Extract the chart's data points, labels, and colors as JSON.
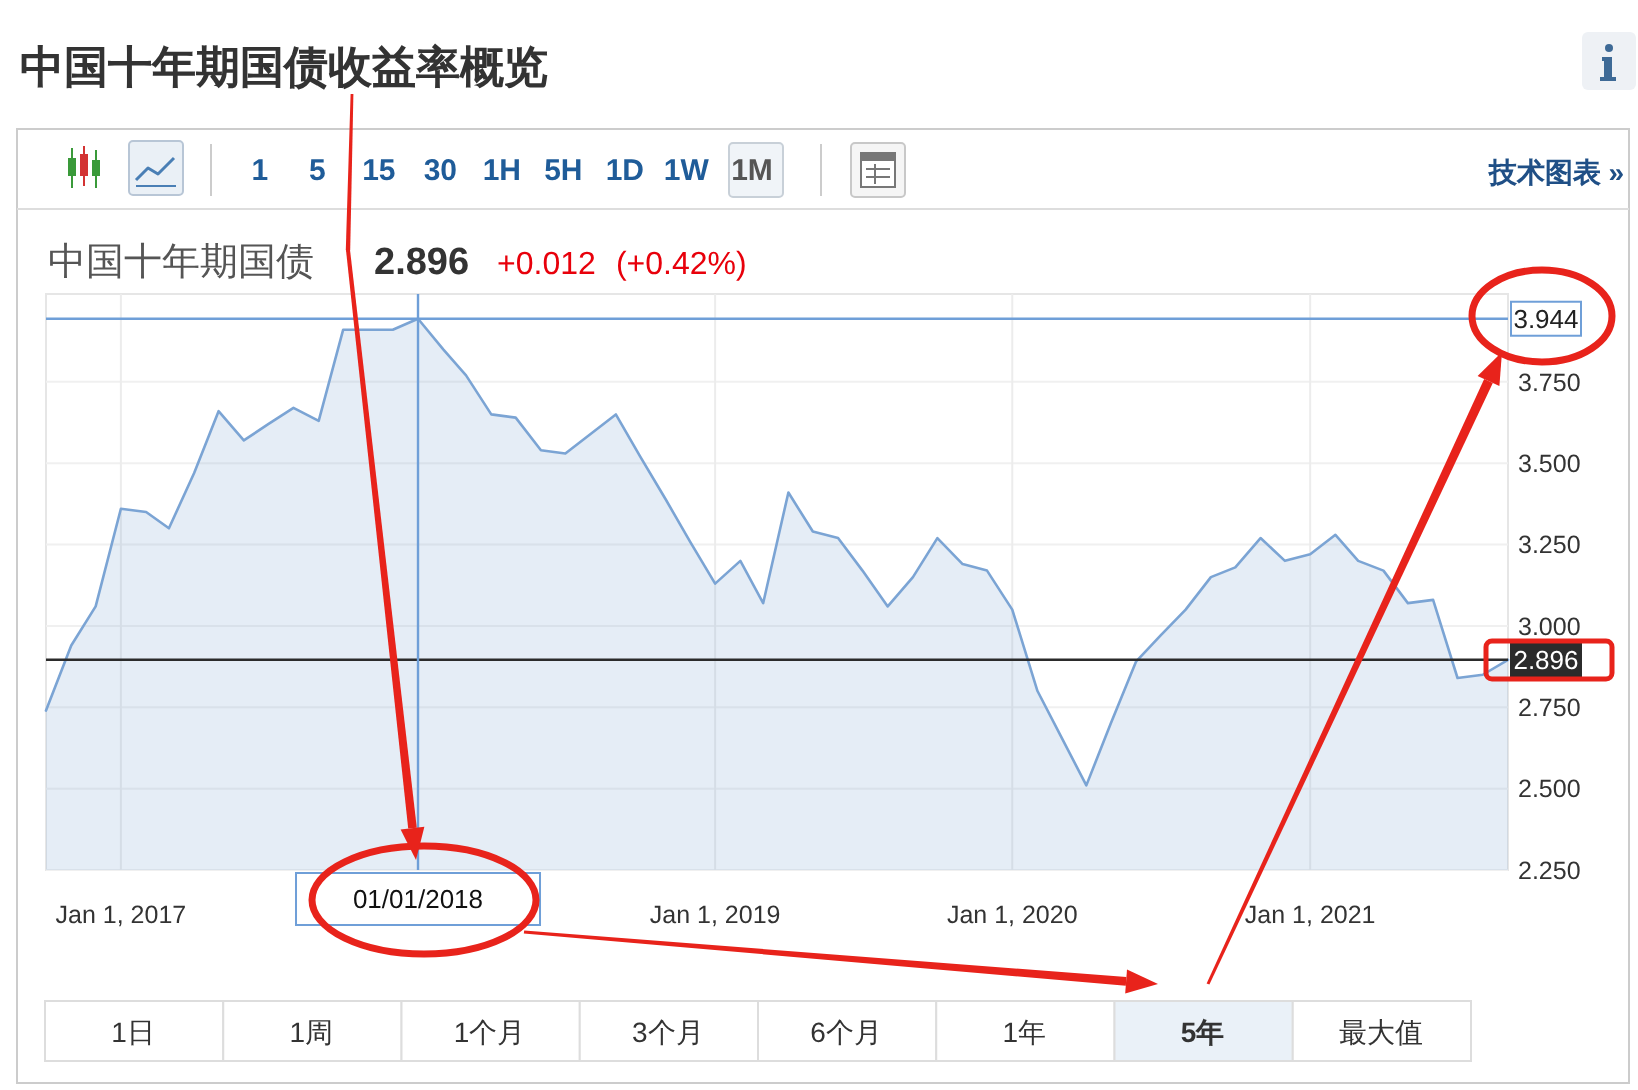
{
  "chart_data": {
    "type": "area",
    "title": "中国十年期国债收益率概览",
    "subtitle": "中国十年期国债 2.896 +0.012 (+0.42%)",
    "x": [
      "2016-10",
      "2016-11",
      "2016-12",
      "2017-01",
      "2017-02",
      "2017-03",
      "2017-04",
      "2017-05",
      "2017-06",
      "2017-07",
      "2017-08",
      "2017-09",
      "2017-10",
      "2017-11",
      "2017-12",
      "2018-01",
      "2018-02",
      "2018-03",
      "2018-04",
      "2018-05",
      "2018-06",
      "2018-07",
      "2018-08",
      "2018-09",
      "2018-10",
      "2018-11",
      "2018-12",
      "2019-01",
      "2019-02",
      "2019-03",
      "2019-04",
      "2019-05",
      "2019-06",
      "2019-07",
      "2019-08",
      "2019-09",
      "2019-10",
      "2019-11",
      "2019-12",
      "2020-01",
      "2020-02",
      "2020-03",
      "2020-04",
      "2020-05",
      "2020-06",
      "2020-07",
      "2020-08",
      "2020-09",
      "2020-10",
      "2020-11",
      "2020-12",
      "2021-01",
      "2021-02",
      "2021-03",
      "2021-04",
      "2021-05",
      "2021-06",
      "2021-07",
      "2021-08",
      "2021-09"
    ],
    "series": [
      {
        "color": "#7ba4d4",
        "values": [
          2.74,
          2.94,
          3.06,
          3.36,
          3.35,
          3.3,
          3.47,
          3.66,
          3.57,
          3.62,
          3.67,
          3.63,
          3.91,
          3.91,
          3.91,
          3.944,
          3.85,
          3.77,
          3.65,
          3.64,
          3.54,
          3.53,
          3.59,
          3.65,
          3.52,
          3.39,
          3.26,
          3.13,
          3.2,
          3.07,
          3.41,
          3.29,
          3.27,
          3.17,
          3.06,
          3.15,
          3.27,
          3.19,
          3.17,
          3.05,
          2.8,
          2.66,
          2.51,
          2.7,
          2.89,
          2.97,
          3.05,
          3.15,
          3.18,
          3.27,
          3.2,
          3.22,
          3.28,
          3.2,
          3.17,
          3.07,
          3.08,
          2.84,
          2.85,
          2.896
        ]
      }
    ],
    "xlim": [
      "2016-10",
      "2021-09"
    ],
    "xticks": [
      {
        "value": "2017-01-01",
        "label": "Jan 1, 2017"
      },
      {
        "value": "2018-01-01",
        "label": null
      },
      {
        "value": "2019-01-01",
        "label": "Jan 1, 2019"
      },
      {
        "value": "2020-01-01",
        "label": "Jan 1, 2020"
      },
      {
        "value": "2021-01-01",
        "label": "Jan 1, 2021"
      }
    ],
    "ylim": [
      2.25,
      4.02
    ],
    "yticks": [
      {
        "value": 2.25,
        "label": "2.250"
      },
      {
        "value": 2.5,
        "label": "2.500"
      },
      {
        "value": 2.75,
        "label": "2.750"
      },
      {
        "value": 3.0,
        "label": "3.000"
      },
      {
        "value": 3.25,
        "label": "3.250"
      },
      {
        "value": 3.5,
        "label": "3.500"
      },
      {
        "value": 3.75,
        "label": "3.750"
      }
    ],
    "grid": true,
    "ref_lines": [
      {
        "axis": "y",
        "value": 3.944,
        "label": "3.944",
        "color": "#6f9fd8"
      },
      {
        "axis": "y",
        "value": 2.896,
        "label": "2.896",
        "color": "#2b2b2b"
      },
      {
        "axis": "x",
        "value": "2018-01-01",
        "label": "01/01/2018",
        "color": "#6f9fd8"
      }
    ],
    "annotations": [
      "1 5 15 30 1H 5H 1D 1W 1M",
      "技术图表 »",
      "1日",
      "1周",
      "1个月",
      "3个月",
      "6个月",
      "1年",
      "5年",
      "最大值"
    ]
  }
}
